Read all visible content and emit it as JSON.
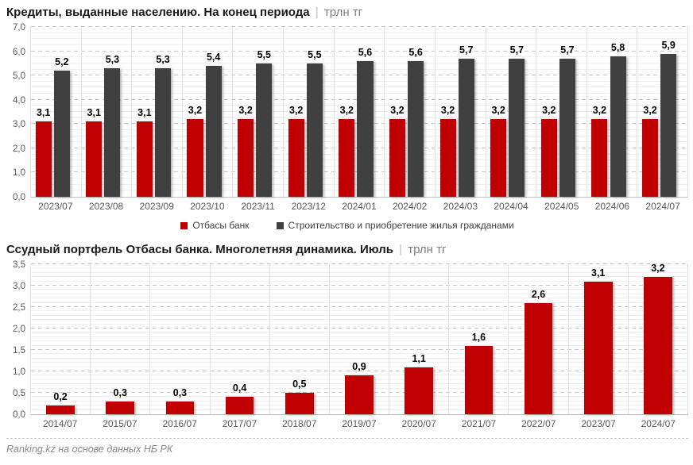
{
  "page": {
    "footer": "Ranking.kz на основе данных НБ РК",
    "title_separator": "|"
  },
  "colors": {
    "accent_red": "#c00000",
    "dark_gray": "#404040",
    "axis_text": "#595959",
    "unit_text": "#7f7f7f"
  },
  "chart_data": [
    {
      "type": "bar",
      "title": "Кредиты, выданные населению. На конец периода",
      "unit": "трлн тг",
      "legend_position": "bottom-center",
      "grid": true,
      "ylim": [
        0,
        7
      ],
      "ymajor": 1,
      "yminor": 0.25,
      "yticks": [
        "0,0",
        "1,0",
        "2,0",
        "3,0",
        "4,0",
        "5,0",
        "6,0",
        "7,0"
      ],
      "categories": [
        "2023/07",
        "2023/08",
        "2023/09",
        "2023/10",
        "2023/11",
        "2023/12",
        "2024/01",
        "2024/02",
        "2024/03",
        "2024/04",
        "2024/05",
        "2024/06",
        "2024/07"
      ],
      "series": [
        {
          "name": "Отбасы банк",
          "color": "#c00000",
          "values": [
            3.1,
            3.1,
            3.1,
            3.2,
            3.2,
            3.2,
            3.2,
            3.2,
            3.2,
            3.2,
            3.2,
            3.2,
            3.2
          ],
          "labels": [
            "3,1",
            "3,1",
            "3,1",
            "3,2",
            "3,2",
            "3,2",
            "3,2",
            "3,2",
            "3,2",
            "3,2",
            "3,2",
            "3,2",
            "3,2"
          ]
        },
        {
          "name": "Строительство и приобретение жилья гражданами",
          "color": "#404040",
          "values": [
            5.2,
            5.3,
            5.3,
            5.4,
            5.5,
            5.5,
            5.6,
            5.6,
            5.7,
            5.7,
            5.7,
            5.8,
            5.9
          ],
          "labels": [
            "5,2",
            "5,3",
            "5,3",
            "5,4",
            "5,5",
            "5,5",
            "5,6",
            "5,6",
            "5,7",
            "5,7",
            "5,7",
            "5,8",
            "5,9"
          ]
        }
      ]
    },
    {
      "type": "bar",
      "title": "Ссудный портфель Отбасы банка. Многолетняя динамика. Июль",
      "unit": "трлн тг",
      "legend_position": "none",
      "grid": true,
      "ylim": [
        0,
        3.5
      ],
      "ymajor": 0.5,
      "yminor": 0.1,
      "yticks": [
        "0,0",
        "0,5",
        "1,0",
        "1,5",
        "2,0",
        "2,5",
        "3,0",
        "3,5"
      ],
      "categories": [
        "2014/07",
        "2015/07",
        "2016/07",
        "2017/07",
        "2018/07",
        "2019/07",
        "2020/07",
        "2021/07",
        "2022/07",
        "2023/07",
        "2024/07"
      ],
      "series": [
        {
          "name": "Отбасы банк",
          "color": "#c00000",
          "values": [
            0.2,
            0.3,
            0.3,
            0.4,
            0.5,
            0.9,
            1.1,
            1.6,
            2.6,
            3.1,
            3.2
          ],
          "labels": [
            "0,2",
            "0,3",
            "0,3",
            "0,4",
            "0,5",
            "0,9",
            "1,1",
            "1,6",
            "2,6",
            "3,1",
            "3,2"
          ]
        }
      ]
    }
  ]
}
